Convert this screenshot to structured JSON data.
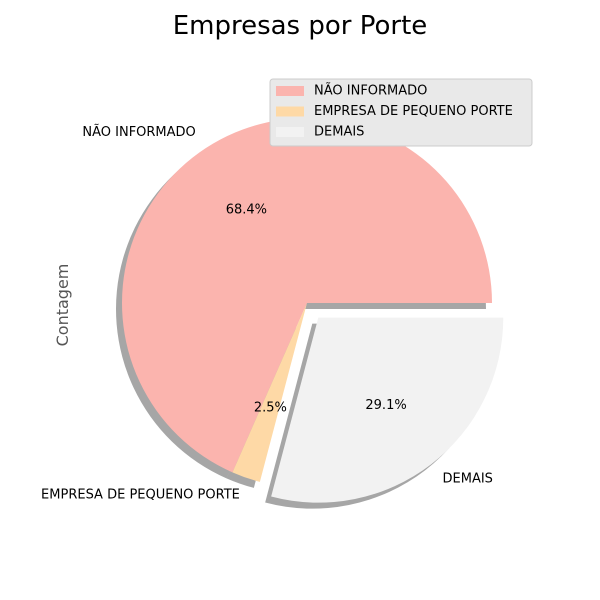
{
  "chart_data": {
    "type": "pie",
    "title": "Empresas por Porte",
    "ylabel": "Contagem",
    "categories": [
      "NÃO INFORMADO",
      "EMPRESA DE PEQUENO PORTE",
      "DEMAIS"
    ],
    "values": [
      68.4,
      2.5,
      29.1
    ],
    "percent_labels": [
      "68.4%",
      "2.5%",
      "29.1%"
    ],
    "colors": [
      "#fbb4ae",
      "#fed9a6",
      "#f2f2f2"
    ],
    "exploded": [
      false,
      false,
      true
    ],
    "shadow": true,
    "start_angle": 0,
    "direction": "counterclockwise",
    "legend": {
      "placement": "top-right",
      "entries": [
        "NÃO INFORMADO",
        "EMPRESA DE PEQUENO PORTE",
        "DEMAIS"
      ]
    }
  }
}
